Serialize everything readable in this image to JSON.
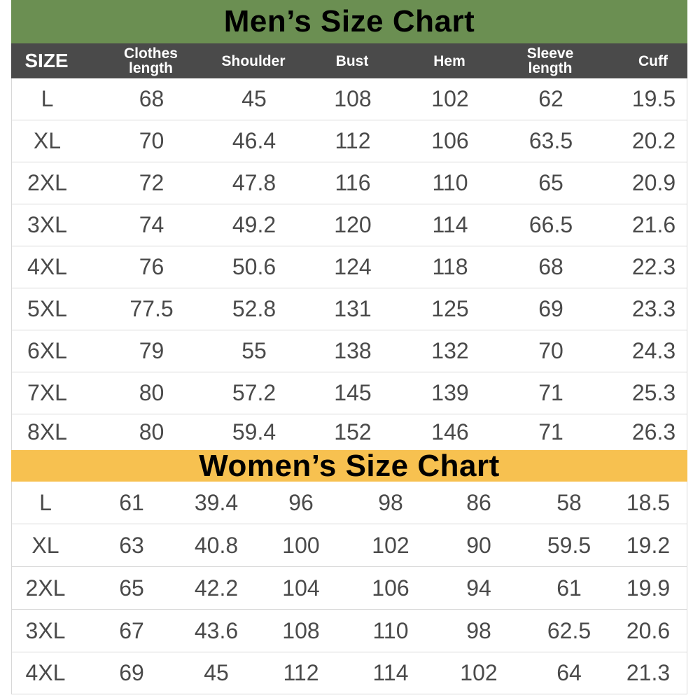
{
  "men": {
    "title": "Men’s Size Chart",
    "headers": [
      "SIZE",
      "Clothes\nlength",
      "Shoulder",
      "Bust",
      "Hem",
      "Sleeve\nlength",
      "Cuff"
    ],
    "rows": [
      [
        "L",
        "68",
        "45",
        "108",
        "102",
        "62",
        "19.5"
      ],
      [
        "XL",
        "70",
        "46.4",
        "112",
        "106",
        "63.5",
        "20.2"
      ],
      [
        "2XL",
        "72",
        "47.8",
        "116",
        "110",
        "65",
        "20.9"
      ],
      [
        "3XL",
        "74",
        "49.2",
        "120",
        "114",
        "66.5",
        "21.6"
      ],
      [
        "4XL",
        "76",
        "50.6",
        "124",
        "118",
        "68",
        "22.3"
      ],
      [
        "5XL",
        "77.5",
        "52.8",
        "131",
        "125",
        "69",
        "23.3"
      ],
      [
        "6XL",
        "79",
        "55",
        "138",
        "132",
        "70",
        "24.3"
      ],
      [
        "7XL",
        "80",
        "57.2",
        "145",
        "139",
        "71",
        "25.3"
      ],
      [
        "8XL",
        "80",
        "59.4",
        "152",
        "146",
        "71",
        "26.3"
      ]
    ]
  },
  "women": {
    "title": "Women’s Size Chart",
    "rows": [
      [
        "L",
        "61",
        "39.4",
        "96",
        "98",
        "86",
        "58",
        "18.5"
      ],
      [
        "XL",
        "63",
        "40.8",
        "100",
        "102",
        "90",
        "59.5",
        "19.2"
      ],
      [
        "2XL",
        "65",
        "42.2",
        "104",
        "106",
        "94",
        "61",
        "19.9"
      ],
      [
        "3XL",
        "67",
        "43.6",
        "108",
        "110",
        "98",
        "62.5",
        "20.6"
      ],
      [
        "4XL",
        "69",
        "45",
        "112",
        "114",
        "102",
        "64",
        "21.3"
      ]
    ]
  },
  "colors": {
    "men_banner": "#6b8f52",
    "header_bar": "#4a4a4a",
    "women_banner": "#f7c150",
    "cell_text": "#4a4a4a"
  }
}
